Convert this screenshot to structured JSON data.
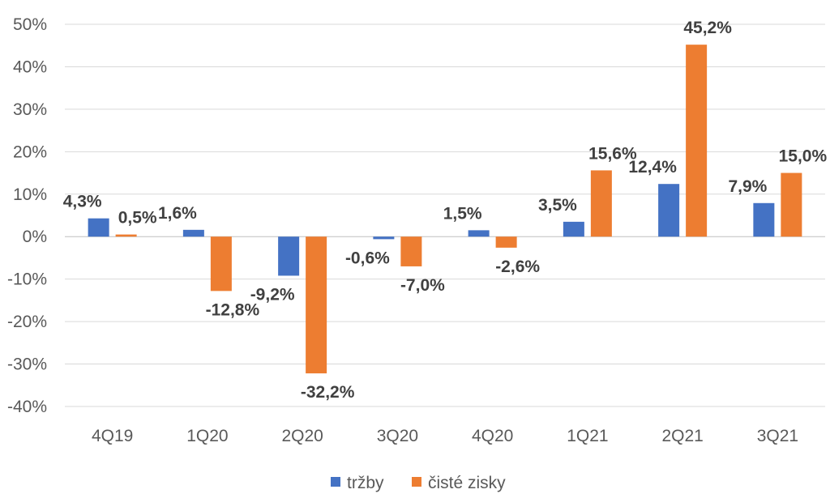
{
  "chart_data": {
    "type": "bar",
    "categories": [
      "4Q19",
      "1Q20",
      "2Q20",
      "3Q20",
      "4Q20",
      "1Q21",
      "2Q21",
      "3Q21"
    ],
    "series": [
      {
        "name": "tržby",
        "color": "#4472C4",
        "values": [
          4.3,
          1.6,
          -9.2,
          -0.6,
          1.5,
          3.5,
          12.4,
          7.9
        ],
        "labels": [
          "4,3%",
          "1,6%",
          "-9,2%",
          "-0,6%",
          "1,5%",
          "3,5%",
          "12,4%",
          "7,9%"
        ]
      },
      {
        "name": "čisté zisky",
        "color": "#ED7D31",
        "values": [
          0.5,
          -12.8,
          -32.2,
          -7.0,
          -2.6,
          15.6,
          45.2,
          15.0
        ],
        "labels": [
          "0,5%",
          "-12,8%",
          "-32,2%",
          "-7,0%",
          "-2,6%",
          "15,6%",
          "45,2%",
          "15,0%"
        ]
      }
    ],
    "ylim": [
      -40,
      50
    ],
    "yticks": [
      50,
      40,
      30,
      20,
      10,
      0,
      -10,
      -20,
      -30,
      -40
    ],
    "ytick_labels": [
      "50%",
      "40%",
      "30%",
      "20%",
      "10%",
      "0%",
      "-10%",
      "-20%",
      "-30%",
      "-40%"
    ],
    "grid": true,
    "legend_position": "bottom-center",
    "title": "",
    "xlabel": "",
    "ylabel": ""
  }
}
